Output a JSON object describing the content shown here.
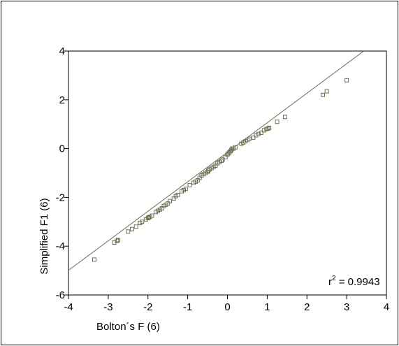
{
  "chart_data": {
    "type": "scatter",
    "xlabel": "Bolton´s F (6)",
    "ylabel": "Simplified  F1 (6)",
    "xlim": [
      -4,
      4
    ],
    "ylim": [
      -6,
      4
    ],
    "xticks": [
      "-4",
      "-3",
      "-2",
      "-1",
      "0",
      "1",
      "2",
      "3",
      "4"
    ],
    "yticks": [
      "-6",
      "-4",
      "-2",
      "0",
      "2",
      "4"
    ],
    "grid": false,
    "annotation": {
      "prefix": "r",
      "sup": "2",
      "suffix": " = 0.9943"
    },
    "fit_line": {
      "slope": 1.21,
      "intercept": -0.15
    },
    "marker": "hollow-square",
    "colors": {
      "marker": "#6e6e55",
      "line": "#6e6e55",
      "axis": "#000000"
    },
    "points": [
      [
        -3.35,
        -4.55
      ],
      [
        -2.85,
        -3.85
      ],
      [
        -2.78,
        -3.78
      ],
      [
        -2.75,
        -3.75
      ],
      [
        -2.5,
        -3.4
      ],
      [
        -2.4,
        -3.3
      ],
      [
        -2.3,
        -3.2
      ],
      [
        -2.2,
        -3.05
      ],
      [
        -2.15,
        -3.0
      ],
      [
        -2.05,
        -2.9
      ],
      [
        -2.0,
        -2.85
      ],
      [
        -1.98,
        -2.82
      ],
      [
        -1.95,
        -2.8
      ],
      [
        -1.9,
        -2.75
      ],
      [
        -1.8,
        -2.6
      ],
      [
        -1.75,
        -2.55
      ],
      [
        -1.7,
        -2.5
      ],
      [
        -1.65,
        -2.45
      ],
      [
        -1.6,
        -2.35
      ],
      [
        -1.55,
        -2.3
      ],
      [
        -1.5,
        -2.25
      ],
      [
        -1.45,
        -2.15
      ],
      [
        -1.35,
        -2.05
      ],
      [
        -1.3,
        -1.95
      ],
      [
        -1.25,
        -1.9
      ],
      [
        -1.15,
        -1.75
      ],
      [
        -1.1,
        -1.7
      ],
      [
        -1.05,
        -1.65
      ],
      [
        -0.95,
        -1.5
      ],
      [
        -0.85,
        -1.4
      ],
      [
        -0.8,
        -1.35
      ],
      [
        -0.75,
        -1.3
      ],
      [
        -0.7,
        -1.2
      ],
      [
        -0.65,
        -1.1
      ],
      [
        -0.6,
        -1.05
      ],
      [
        -0.55,
        -1.0
      ],
      [
        -0.5,
        -0.95
      ],
      [
        -0.48,
        -0.9
      ],
      [
        -0.45,
        -0.85
      ],
      [
        -0.4,
        -0.8
      ],
      [
        -0.35,
        -0.75
      ],
      [
        -0.3,
        -0.7
      ],
      [
        -0.25,
        -0.6
      ],
      [
        -0.2,
        -0.55
      ],
      [
        -0.15,
        -0.5
      ],
      [
        -0.12,
        -0.45
      ],
      [
        -0.05,
        -0.35
      ],
      [
        0.0,
        -0.25
      ],
      [
        0.02,
        -0.2
      ],
      [
        0.05,
        -0.15
      ],
      [
        0.08,
        -0.1
      ],
      [
        0.1,
        -0.05
      ],
      [
        0.12,
        0.0
      ],
      [
        0.15,
        0.0
      ],
      [
        0.2,
        0.05
      ],
      [
        0.35,
        0.2
      ],
      [
        0.4,
        0.25
      ],
      [
        0.45,
        0.3
      ],
      [
        0.5,
        0.35
      ],
      [
        0.55,
        0.4
      ],
      [
        0.65,
        0.45
      ],
      [
        0.72,
        0.55
      ],
      [
        0.78,
        0.6
      ],
      [
        0.85,
        0.65
      ],
      [
        0.92,
        0.75
      ],
      [
        0.98,
        0.8
      ],
      [
        1.02,
        0.82
      ],
      [
        1.05,
        0.85
      ],
      [
        1.25,
        1.1
      ],
      [
        1.45,
        1.3
      ],
      [
        2.4,
        2.2
      ],
      [
        2.5,
        2.35
      ],
      [
        3.0,
        2.8
      ]
    ]
  }
}
